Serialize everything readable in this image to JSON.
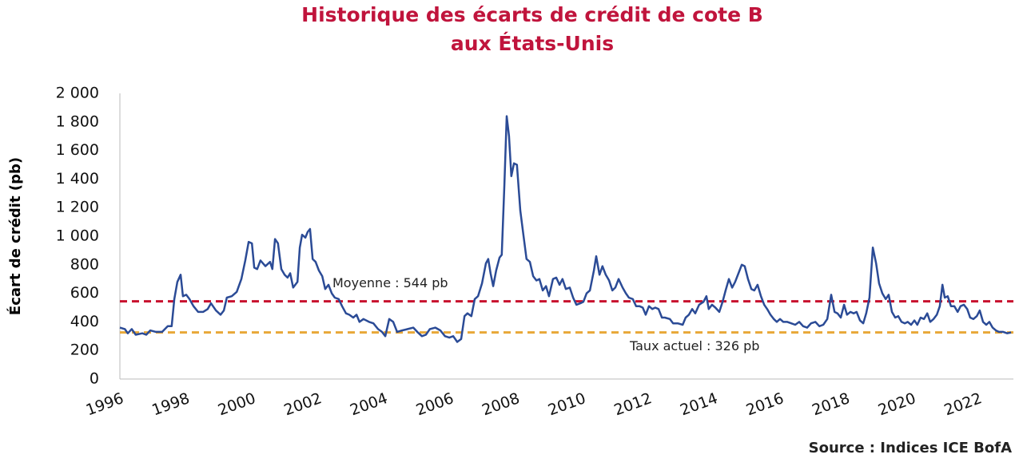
{
  "chart_data": {
    "type": "line",
    "title": [
      "Historique des écarts de crédit de cote B",
      "aux États-Unis"
    ],
    "y_label": "Écart de crédit (pb)",
    "source": "Source : Indices ICE BofA",
    "xlim": [
      1996,
      2023.07
    ],
    "xticks": [
      1996,
      1998,
      2000,
      2002,
      2004,
      2006,
      2008,
      2010,
      2012,
      2014,
      2016,
      2018,
      2020,
      2022
    ],
    "ylim": [
      0,
      2000
    ],
    "yticks": [
      0,
      200,
      400,
      600,
      800,
      {
        "value": 1000,
        "label": "1 000"
      },
      {
        "value": 1200,
        "label": "1 200"
      },
      {
        "value": 1400,
        "label": "1 400"
      },
      {
        "value": 1600,
        "label": "1 600"
      },
      {
        "value": 1800,
        "label": "1 800"
      },
      {
        "value": 2000,
        "label": "2 000"
      }
    ],
    "grid": false,
    "x": [
      1996.0,
      1996.15,
      1996.24,
      1996.36,
      1996.48,
      1996.68,
      1996.8,
      1996.92,
      1997.09,
      1997.28,
      1997.45,
      1997.57,
      1997.65,
      1997.74,
      1997.84,
      1997.91,
      1998.01,
      1998.11,
      1998.23,
      1998.37,
      1998.52,
      1998.66,
      1998.76,
      1998.91,
      1999.05,
      1999.15,
      1999.24,
      1999.39,
      1999.54,
      1999.68,
      1999.8,
      1999.9,
      2000.0,
      2000.07,
      2000.16,
      2000.26,
      2000.41,
      2000.55,
      2000.62,
      2000.7,
      2000.79,
      2000.89,
      2000.99,
      2001.08,
      2001.16,
      2001.25,
      2001.38,
      2001.45,
      2001.52,
      2001.62,
      2001.69,
      2001.76,
      2001.84,
      2001.93,
      2002.03,
      2002.13,
      2002.22,
      2002.32,
      2002.42,
      2002.51,
      2002.63,
      2002.73,
      2002.85,
      2002.95,
      2003.07,
      2003.17,
      2003.26,
      2003.38,
      2003.55,
      2003.68,
      2003.82,
      2003.94,
      2004.04,
      2004.16,
      2004.28,
      2004.4,
      2004.55,
      2004.72,
      2004.89,
      2005.01,
      2005.15,
      2005.27,
      2005.39,
      2005.56,
      2005.71,
      2005.85,
      2005.98,
      2006.1,
      2006.22,
      2006.34,
      2006.44,
      2006.53,
      2006.65,
      2006.75,
      2006.85,
      2006.97,
      2007.09,
      2007.16,
      2007.23,
      2007.31,
      2007.4,
      2007.5,
      2007.57,
      2007.65,
      2007.72,
      2007.79,
      2007.86,
      2007.94,
      2008.03,
      2008.13,
      2008.23,
      2008.32,
      2008.42,
      2008.52,
      2008.62,
      2008.71,
      2008.81,
      2008.91,
      2009.0,
      2009.12,
      2009.22,
      2009.32,
      2009.41,
      2009.51,
      2009.63,
      2009.73,
      2009.83,
      2009.95,
      2010.04,
      2010.14,
      2010.24,
      2010.36,
      2010.43,
      2010.53,
      2010.62,
      2010.72,
      2010.82,
      2010.92,
      2011.01,
      2011.11,
      2011.23,
      2011.33,
      2011.42,
      2011.54,
      2011.64,
      2011.74,
      2011.84,
      2011.93,
      2012.03,
      2012.13,
      2012.22,
      2012.32,
      2012.42,
      2012.51,
      2012.66,
      2012.76,
      2012.9,
      2013.05,
      2013.14,
      2013.24,
      2013.34,
      2013.43,
      2013.55,
      2013.68,
      2013.77,
      2013.84,
      2013.94,
      2014.04,
      2014.16,
      2014.26,
      2014.35,
      2014.45,
      2014.55,
      2014.64,
      2014.74,
      2014.84,
      2014.93,
      2015.03,
      2015.13,
      2015.22,
      2015.32,
      2015.42,
      2015.52,
      2015.61,
      2015.71,
      2015.81,
      2015.9,
      2016.0,
      2016.1,
      2016.22,
      2016.34,
      2016.46,
      2016.58,
      2016.7,
      2016.82,
      2016.94,
      2017.07,
      2017.19,
      2017.31,
      2017.43,
      2017.55,
      2017.65,
      2017.74,
      2017.84,
      2017.94,
      2018.03,
      2018.13,
      2018.23,
      2018.32,
      2018.42,
      2018.52,
      2018.61,
      2018.71,
      2018.81,
      2018.91,
      2019.0,
      2019.1,
      2019.2,
      2019.29,
      2019.39,
      2019.49,
      2019.58,
      2019.68,
      2019.78,
      2019.87,
      2019.97,
      2020.07,
      2020.16,
      2020.26,
      2020.36,
      2020.46,
      2020.55,
      2020.65,
      2020.75,
      2020.84,
      2020.92,
      2020.99,
      2021.08,
      2021.18,
      2021.28,
      2021.38,
      2021.47,
      2021.57,
      2021.67,
      2021.76,
      2021.86,
      2021.96,
      2022.05,
      2022.15,
      2022.25,
      2022.34,
      2022.44,
      2022.54,
      2022.63,
      2022.76,
      2022.88,
      2023.0
    ],
    "series": [
      {
        "name": "Écart de crédit",
        "color": "#2b4b96",
        "values": [
          360,
          350,
          320,
          350,
          310,
          320,
          310,
          340,
          330,
          330,
          370,
          370,
          560,
          680,
          730,
          580,
          590,
          560,
          510,
          470,
          470,
          490,
          530,
          480,
          450,
          480,
          570,
          580,
          610,
          700,
          830,
          960,
          950,
          780,
          770,
          830,
          790,
          820,
          770,
          980,
          950,
          770,
          730,
          710,
          740,
          640,
          680,
          920,
          1010,
          990,
          1030,
          1050,
          840,
          820,
          760,
          720,
          630,
          660,
          600,
          570,
          560,
          510,
          460,
          450,
          430,
          450,
          400,
          420,
          400,
          390,
          350,
          330,
          300,
          420,
          400,
          330,
          340,
          350,
          360,
          330,
          300,
          310,
          350,
          360,
          340,
          300,
          290,
          300,
          260,
          280,
          440,
          460,
          440,
          560,
          580,
          670,
          810,
          840,
          740,
          650,
          760,
          850,
          870,
          1360,
          1840,
          1700,
          1420,
          1510,
          1500,
          1180,
          1000,
          840,
          820,
          720,
          690,
          700,
          620,
          650,
          580,
          700,
          710,
          660,
          700,
          630,
          640,
          570,
          520,
          530,
          540,
          600,
          620,
          760,
          860,
          730,
          790,
          730,
          690,
          620,
          640,
          700,
          640,
          600,
          570,
          560,
          510,
          510,
          500,
          450,
          510,
          490,
          500,
          490,
          430,
          430,
          420,
          390,
          390,
          380,
          430,
          450,
          490,
          460,
          520,
          540,
          580,
          490,
          520,
          500,
          470,
          540,
          620,
          700,
          640,
          680,
          740,
          800,
          790,
          700,
          630,
          620,
          660,
          580,
          520,
          490,
          450,
          420,
          400,
          420,
          400,
          400,
          390,
          380,
          400,
          370,
          360,
          390,
          400,
          370,
          380,
          420,
          590,
          470,
          460,
          430,
          520,
          450,
          470,
          460,
          470,
          410,
          390,
          460,
          570,
          920,
          810,
          670,
          600,
          560,
          590,
          470,
          430,
          440,
          400,
          390,
          400,
          380,
          410,
          380,
          430,
          420,
          460,
          400,
          420,
          450,
          510,
          660,
          570,
          580,
          510,
          510,
          470,
          510,
          520,
          490,
          430,
          420,
          440,
          480,
          400,
          380,
          400,
          360,
          340,
          330,
          330,
          320,
          326
        ]
      }
    ],
    "reference_lines": [
      {
        "value": 544,
        "label": "Moyenne : 544 pb",
        "color": "#c8102e"
      },
      {
        "value": 326,
        "label": "Taux actuel : 326 pb",
        "color": "#e8a838"
      }
    ]
  }
}
